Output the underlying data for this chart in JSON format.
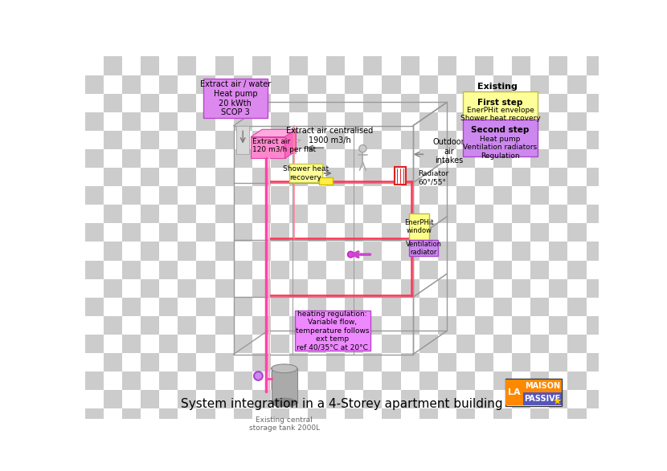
{
  "title": "System integration in a 4-Storey apartment building",
  "title_fontsize": 11,
  "checker_size": 30,
  "checker_color1": "#ffffff",
  "checker_color2": "#cccccc",
  "label_heat_pump": "Extract air / water\nHeat pump\n20 kWth\nSCOP 3",
  "label_extract_air_centralised": "Extract air centralised\n1900 m3/h",
  "label_outdoor_air": "Outdoor\nair\nintakes",
  "label_extract_air_flat": "Extract air\n120 m3/h per flat",
  "label_shower_heat": "Shower heat\nrecovery",
  "label_radiator": "Radiator\n60°/55°",
  "label_enerphi_window": "EnerPHit\nwindow",
  "label_ventilation_radiator": "Ventilation\nradiator",
  "label_heating_regulation": "heating regulation:\nVariable flow,\ntemperature follows\next temp\nref 40/35°C at 20°C",
  "label_storage_tank": "Existing central\nstorage tank 2000L",
  "legend_existing": "Existing",
  "legend_first_step_title": "First step",
  "legend_first_step_body": "EnerPHit envelope\nShower heat recovery",
  "legend_second_step_title": "Second step",
  "legend_second_step_body": "Heat pump\nVentilation radiators\nRegulation",
  "color_hp_box": "#DD88EE",
  "color_hp_body": "#FF88CC",
  "color_duct": "#C8C8C8",
  "color_building": "#999999",
  "color_pipe_hot1": "#FF4466",
  "color_pipe_hot2": "#FFAACC",
  "color_yellow_box": "#FFFF99",
  "color_purple_box": "#CC88EE",
  "color_tank": "#AAAAAA",
  "color_logo_blue": "#0055AA",
  "color_logo_orange": "#FF8800"
}
